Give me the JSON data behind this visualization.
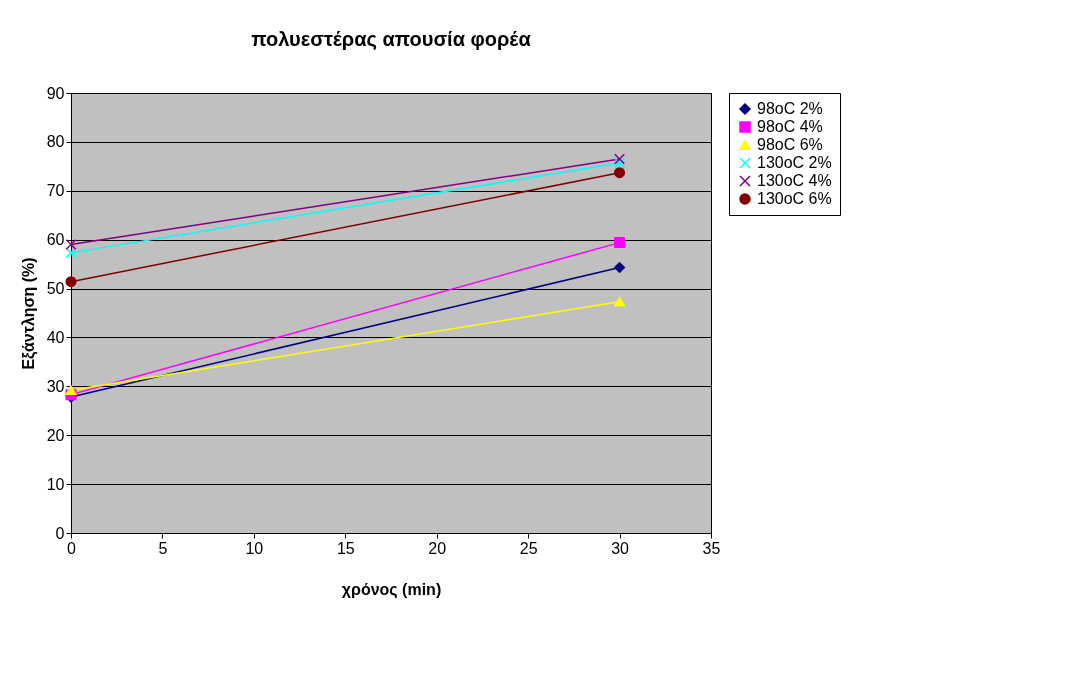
{
  "chart_data": {
    "type": "line",
    "title": "πολυεστέρας απουσία φορέα",
    "xlabel": "χρόνος (min)",
    "ylabel": "Εξάντληση (%)",
    "x": [
      0,
      30
    ],
    "series": [
      {
        "name": "98oC 2%",
        "color": "#000080",
        "marker": "diamond",
        "values": [
          27.8,
          54.3
        ]
      },
      {
        "name": "98oC 4%",
        "color": "#ff00ff",
        "marker": "square",
        "values": [
          28.3,
          59.4
        ]
      },
      {
        "name": "98oC 6%",
        "color": "#ffff00",
        "marker": "triangle",
        "values": [
          29.2,
          47.3
        ]
      },
      {
        "name": "130oC 2%",
        "color": "#00ffff",
        "marker": "cross",
        "values": [
          57.3,
          75.7
        ]
      },
      {
        "name": "130oC 4%",
        "color": "#800080",
        "marker": "cross",
        "values": [
          59.0,
          76.5
        ]
      },
      {
        "name": "130oC 6%",
        "color": "#800000",
        "marker": "circle",
        "values": [
          51.4,
          73.7
        ]
      }
    ],
    "xlim": [
      0,
      35
    ],
    "xticks": [
      0,
      5,
      10,
      15,
      20,
      25,
      30,
      35
    ],
    "ylim": [
      0,
      90
    ],
    "yticks": [
      0,
      10,
      20,
      30,
      40,
      50,
      60,
      70,
      80,
      90
    ],
    "grid": "y",
    "legend": "right",
    "line_style": "solid"
  }
}
